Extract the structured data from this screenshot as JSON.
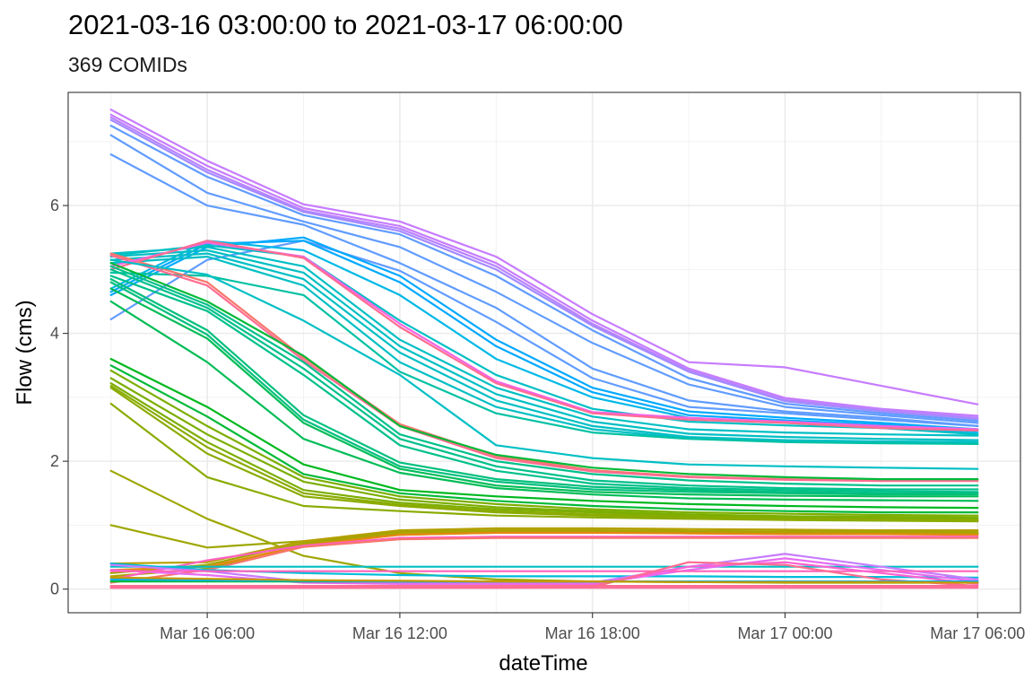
{
  "chart_data": {
    "type": "line",
    "title": "2021-03-16 03:00:00 to 2021-03-17 06:00:00",
    "subtitle": "369 COMIDs",
    "xlabel": "dateTime",
    "ylabel": "Flow (cms)",
    "x": [
      "2021-03-16 03:00",
      "2021-03-16 06:00",
      "2021-03-16 09:00",
      "2021-03-16 12:00",
      "2021-03-16 15:00",
      "2021-03-16 18:00",
      "2021-03-16 21:00",
      "2021-03-17 00:00",
      "2021-03-17 03:00",
      "2021-03-17 06:00"
    ],
    "xlim": [
      "2021-03-16 01:40",
      "2021-03-17 07:20"
    ],
    "x_ticks": [
      "2021-03-16 06:00",
      "2021-03-16 12:00",
      "2021-03-16 18:00",
      "2021-03-17 00:00",
      "2021-03-17 06:00"
    ],
    "x_tick_labels": [
      "Mar 16 06:00",
      "Mar 16 12:00",
      "Mar 16 18:00",
      "Mar 17 00:00",
      "Mar 17 06:00"
    ],
    "ylim": [
      -0.37,
      7.77
    ],
    "y_ticks": [
      0,
      2,
      4,
      6
    ],
    "grid": true,
    "legend": "none",
    "series": [
      {
        "color": "#C77CFF",
        "values": [
          7.5,
          6.7,
          6.02,
          5.75,
          5.2,
          4.3,
          3.55,
          3.47,
          3.18,
          2.89
        ]
      },
      {
        "color": "#C77CFF",
        "values": [
          7.42,
          6.62,
          5.96,
          5.68,
          5.1,
          4.2,
          3.45,
          2.99,
          2.82,
          2.71
        ]
      },
      {
        "color": "#B983FF",
        "values": [
          7.38,
          6.56,
          5.92,
          5.64,
          5.05,
          4.15,
          3.42,
          2.96,
          2.8,
          2.68
        ]
      },
      {
        "color": "#A58AFF",
        "values": [
          7.34,
          6.52,
          5.9,
          5.6,
          5.0,
          4.12,
          3.4,
          2.94,
          2.78,
          2.66
        ]
      },
      {
        "color": "#619CFF",
        "values": [
          7.25,
          6.45,
          5.85,
          5.55,
          4.9,
          4.05,
          3.3,
          2.9,
          2.75,
          2.63
        ]
      },
      {
        "color": "#619CFF",
        "values": [
          7.1,
          6.2,
          5.75,
          5.35,
          4.65,
          3.85,
          3.2,
          2.85,
          2.72,
          2.6
        ]
      },
      {
        "color": "#619CFF",
        "values": [
          6.8,
          6.0,
          5.7,
          5.1,
          4.4,
          3.45,
          2.95,
          2.78,
          2.68,
          2.55
        ]
      },
      {
        "color": "#619CFF",
        "values": [
          4.22,
          5.15,
          5.45,
          4.98,
          4.18,
          3.3,
          2.85,
          2.75,
          2.65,
          2.55
        ]
      },
      {
        "color": "#00A9FF",
        "values": [
          4.6,
          5.35,
          5.5,
          4.9,
          3.9,
          3.15,
          2.78,
          2.68,
          2.6,
          2.5
        ]
      },
      {
        "color": "#00A9FF",
        "values": [
          4.65,
          5.4,
          5.45,
          4.8,
          3.8,
          3.08,
          2.72,
          2.64,
          2.57,
          2.47
        ]
      },
      {
        "color": "#00B8E7",
        "values": [
          4.7,
          5.45,
          5.3,
          4.6,
          3.6,
          3.0,
          2.68,
          2.6,
          2.54,
          2.44
        ]
      },
      {
        "color": "#00BFC4",
        "values": [
          5.22,
          5.38,
          5.2,
          4.2,
          3.35,
          2.82,
          2.62,
          2.56,
          2.52,
          2.42
        ]
      },
      {
        "color": "#00BFC4",
        "values": [
          5.25,
          5.35,
          5.05,
          3.9,
          3.15,
          2.7,
          2.5,
          2.45,
          2.42,
          2.4
        ]
      },
      {
        "color": "#00BFC4",
        "values": [
          5.2,
          5.3,
          4.95,
          3.8,
          3.05,
          2.62,
          2.43,
          2.38,
          2.35,
          2.33
        ]
      },
      {
        "color": "#00BFC4",
        "values": [
          5.15,
          5.25,
          4.85,
          3.7,
          2.95,
          2.55,
          2.38,
          2.33,
          2.31,
          2.3
        ]
      },
      {
        "color": "#00BFC4",
        "values": [
          5.1,
          5.2,
          4.75,
          3.55,
          2.85,
          2.5,
          2.36,
          2.31,
          2.29,
          2.28
        ]
      },
      {
        "color": "#00C1A3",
        "values": [
          4.95,
          4.9,
          4.6,
          3.4,
          2.75,
          2.45,
          2.35,
          2.3,
          2.28,
          2.27
        ]
      },
      {
        "color": "#F8766D",
        "values": [
          5.25,
          4.8,
          3.62,
          2.58,
          2.08,
          1.86,
          1.76,
          1.72,
          1.7,
          1.7
        ]
      },
      {
        "color": "#FF6C91",
        "values": [
          5.22,
          4.75,
          3.58,
          2.55,
          2.05,
          1.84,
          1.75,
          1.71,
          1.69,
          1.69
        ]
      },
      {
        "color": "#F564E3",
        "values": [
          5.05,
          5.42,
          5.2,
          4.15,
          3.25,
          2.77,
          2.68,
          2.62,
          2.55,
          2.5
        ]
      },
      {
        "color": "#FF6C91",
        "values": [
          5.0,
          5.45,
          5.18,
          4.1,
          3.22,
          2.75,
          2.65,
          2.6,
          2.52,
          2.48
        ]
      },
      {
        "color": "#00BA38",
        "values": [
          5.1,
          4.5,
          3.65,
          2.55,
          2.1,
          1.9,
          1.8,
          1.75,
          1.72,
          1.72
        ]
      },
      {
        "color": "#00C08B",
        "values": [
          5.05,
          4.45,
          3.55,
          2.42,
          2.0,
          1.8,
          1.7,
          1.65,
          1.62,
          1.62
        ]
      },
      {
        "color": "#00C08B",
        "values": [
          5.0,
          4.4,
          3.45,
          2.35,
          1.92,
          1.7,
          1.62,
          1.58,
          1.56,
          1.56
        ]
      },
      {
        "color": "#00C08B",
        "values": [
          4.9,
          4.35,
          3.35,
          2.25,
          1.85,
          1.65,
          1.58,
          1.55,
          1.53,
          1.52
        ]
      },
      {
        "color": "#00BF7D",
        "values": [
          4.85,
          4.05,
          2.72,
          1.98,
          1.72,
          1.6,
          1.55,
          1.52,
          1.5,
          1.5
        ]
      },
      {
        "color": "#00BF7D",
        "values": [
          4.8,
          3.98,
          2.65,
          1.92,
          1.68,
          1.56,
          1.52,
          1.5,
          1.48,
          1.48
        ]
      },
      {
        "color": "#00BC56",
        "values": [
          4.7,
          3.92,
          2.6,
          1.88,
          1.62,
          1.52,
          1.48,
          1.46,
          1.45,
          1.45
        ]
      },
      {
        "color": "#00BFC4",
        "values": [
          5.15,
          4.92,
          4.2,
          3.35,
          2.25,
          2.05,
          1.95,
          1.92,
          1.9,
          1.88
        ]
      },
      {
        "color": "#00BC56",
        "values": [
          4.5,
          3.55,
          2.35,
          1.82,
          1.58,
          1.48,
          1.42,
          1.4,
          1.39,
          1.38
        ]
      },
      {
        "color": "#00B81F",
        "values": [
          3.6,
          2.85,
          1.95,
          1.55,
          1.45,
          1.38,
          1.33,
          1.3,
          1.28,
          1.27
        ]
      },
      {
        "color": "#00BA38",
        "values": [
          3.5,
          2.7,
          1.8,
          1.5,
          1.38,
          1.3,
          1.25,
          1.22,
          1.2,
          1.2
        ]
      },
      {
        "color": "#7CAE00",
        "values": [
          3.42,
          2.55,
          1.75,
          1.45,
          1.33,
          1.25,
          1.2,
          1.18,
          1.16,
          1.15
        ]
      },
      {
        "color": "#7CAE00",
        "values": [
          3.3,
          2.42,
          1.68,
          1.4,
          1.28,
          1.22,
          1.17,
          1.14,
          1.13,
          1.12
        ]
      },
      {
        "color": "#7CAE00",
        "values": [
          3.22,
          2.3,
          1.55,
          1.35,
          1.25,
          1.2,
          1.15,
          1.12,
          1.11,
          1.1
        ]
      },
      {
        "color": "#8AAB00",
        "values": [
          3.18,
          2.22,
          1.5,
          1.32,
          1.22,
          1.17,
          1.13,
          1.1,
          1.09,
          1.08
        ]
      },
      {
        "color": "#8AAB00",
        "values": [
          3.15,
          2.12,
          1.45,
          1.3,
          1.2,
          1.15,
          1.12,
          1.09,
          1.08,
          1.07
        ]
      },
      {
        "color": "#8AAB00",
        "values": [
          2.9,
          1.75,
          1.3,
          1.22,
          1.15,
          1.12,
          1.1,
          1.08,
          1.07,
          1.06
        ]
      },
      {
        "color": "#9EA700",
        "values": [
          1.85,
          1.1,
          0.52,
          0.25,
          0.15,
          0.12,
          0.11,
          0.1,
          0.1,
          0.1
        ]
      },
      {
        "color": "#9EA700",
        "values": [
          1.0,
          0.65,
          0.75,
          0.85,
          0.88,
          0.88,
          0.88,
          0.88,
          0.88,
          0.87
        ]
      },
      {
        "color": "#B79F00",
        "values": [
          0.4,
          0.42,
          0.75,
          0.92,
          0.95,
          0.95,
          0.94,
          0.93,
          0.92,
          0.92
        ]
      },
      {
        "color": "#A3A500",
        "values": [
          0.25,
          0.38,
          0.72,
          0.9,
          0.92,
          0.92,
          0.91,
          0.9,
          0.9,
          0.89
        ]
      },
      {
        "color": "#AEA200",
        "values": [
          0.2,
          0.32,
          0.7,
          0.88,
          0.9,
          0.9,
          0.89,
          0.88,
          0.88,
          0.87
        ]
      },
      {
        "color": "#E68613",
        "values": [
          0.3,
          0.35,
          0.68,
          0.85,
          0.88,
          0.88,
          0.87,
          0.86,
          0.86,
          0.85
        ]
      },
      {
        "color": "#FF61C3",
        "values": [
          0.15,
          0.45,
          0.68,
          0.8,
          0.82,
          0.82,
          0.82,
          0.82,
          0.82,
          0.82
        ]
      },
      {
        "color": "#F8766D",
        "values": [
          0.1,
          0.3,
          0.66,
          0.78,
          0.8,
          0.8,
          0.8,
          0.8,
          0.8,
          0.8
        ]
      },
      {
        "color": "#00BFC4",
        "values": [
          0.35,
          0.35,
          0.35,
          0.35,
          0.35,
          0.35,
          0.35,
          0.35,
          0.35,
          0.35
        ]
      },
      {
        "color": "#00BCD8",
        "values": [
          0.4,
          0.3,
          0.25,
          0.22,
          0.2,
          0.2,
          0.2,
          0.19,
          0.19,
          0.18
        ]
      },
      {
        "color": "#C77CFF",
        "values": [
          0.38,
          0.28,
          0.12,
          0.1,
          0.1,
          0.1,
          0.35,
          0.55,
          0.35,
          0.15
        ]
      },
      {
        "color": "#E76BF3",
        "values": [
          0.3,
          0.22,
          0.1,
          0.08,
          0.08,
          0.08,
          0.3,
          0.48,
          0.3,
          0.12
        ]
      },
      {
        "color": "#FF62BC",
        "values": [
          0.28,
          0.28,
          0.28,
          0.28,
          0.28,
          0.28,
          0.28,
          0.28,
          0.28,
          0.28
        ]
      },
      {
        "color": "#FD61D1",
        "values": [
          0.05,
          0.05,
          0.05,
          0.05,
          0.05,
          0.06,
          0.35,
          0.42,
          0.25,
          0.08
        ]
      },
      {
        "color": "#FF6C91",
        "values": [
          0.02,
          0.02,
          0.02,
          0.02,
          0.02,
          0.03,
          0.42,
          0.38,
          0.15,
          0.05
        ]
      },
      {
        "color": "#FF6C91",
        "values": [
          0.05,
          0.05,
          0.05,
          0.05,
          0.05,
          0.05,
          0.05,
          0.05,
          0.05,
          0.05
        ]
      },
      {
        "color": "#FF6A98",
        "values": [
          0.02,
          0.02,
          0.02,
          0.02,
          0.02,
          0.02,
          0.02,
          0.02,
          0.02,
          0.02
        ]
      },
      {
        "color": "#00BA38",
        "values": [
          0.12,
          0.12,
          0.12,
          0.12,
          0.12,
          0.12,
          0.12,
          0.12,
          0.12,
          0.12
        ]
      },
      {
        "color": "#00B0F6",
        "values": [
          0.15,
          0.14,
          0.13,
          0.12,
          0.12,
          0.12,
          0.12,
          0.12,
          0.12,
          0.12
        ]
      },
      {
        "color": "#C49A00",
        "values": [
          0.18,
          0.16,
          0.14,
          0.13,
          0.12,
          0.12,
          0.11,
          0.11,
          0.11,
          0.1
        ]
      }
    ]
  }
}
